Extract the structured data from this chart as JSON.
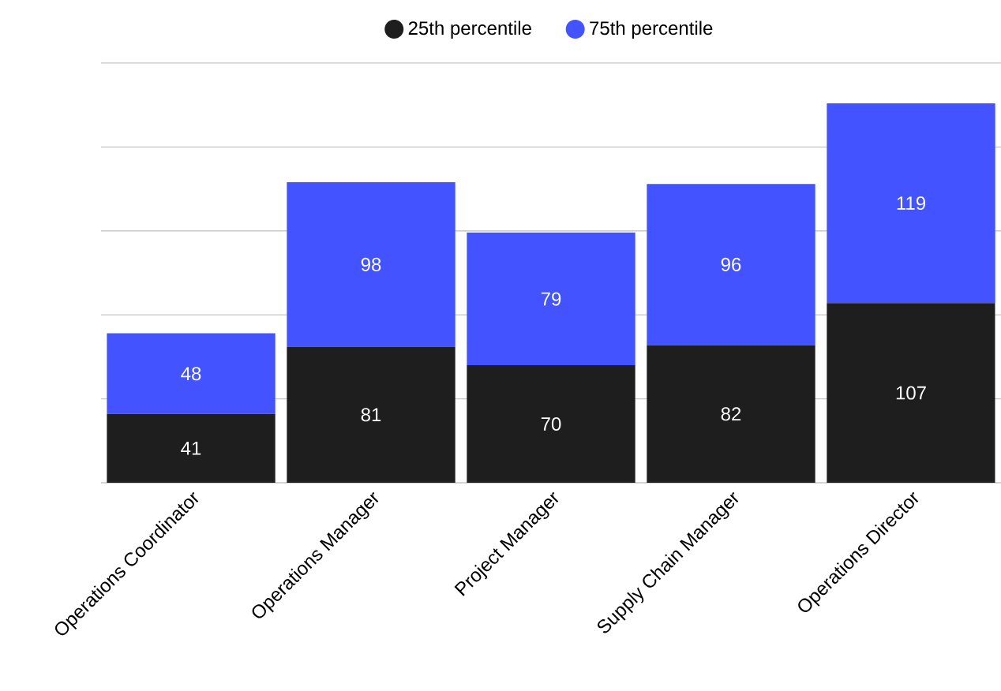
{
  "chart_data": {
    "type": "bar",
    "stacked": true,
    "categories": [
      "Operations Coordinator",
      "Operations Manager",
      "Project Manager",
      "Supply Chain Manager",
      "Operations Director"
    ],
    "series": [
      {
        "name": "25th percentile",
        "color": "#1e1e1e",
        "values": [
          41,
          81,
          70,
          82,
          107
        ]
      },
      {
        "name": "75th percentile",
        "color": "#4353ff",
        "values": [
          48,
          98,
          79,
          96,
          119
        ]
      }
    ],
    "grid": "y",
    "tick_labels": "x",
    "legend": "top",
    "data_labels": true
  }
}
